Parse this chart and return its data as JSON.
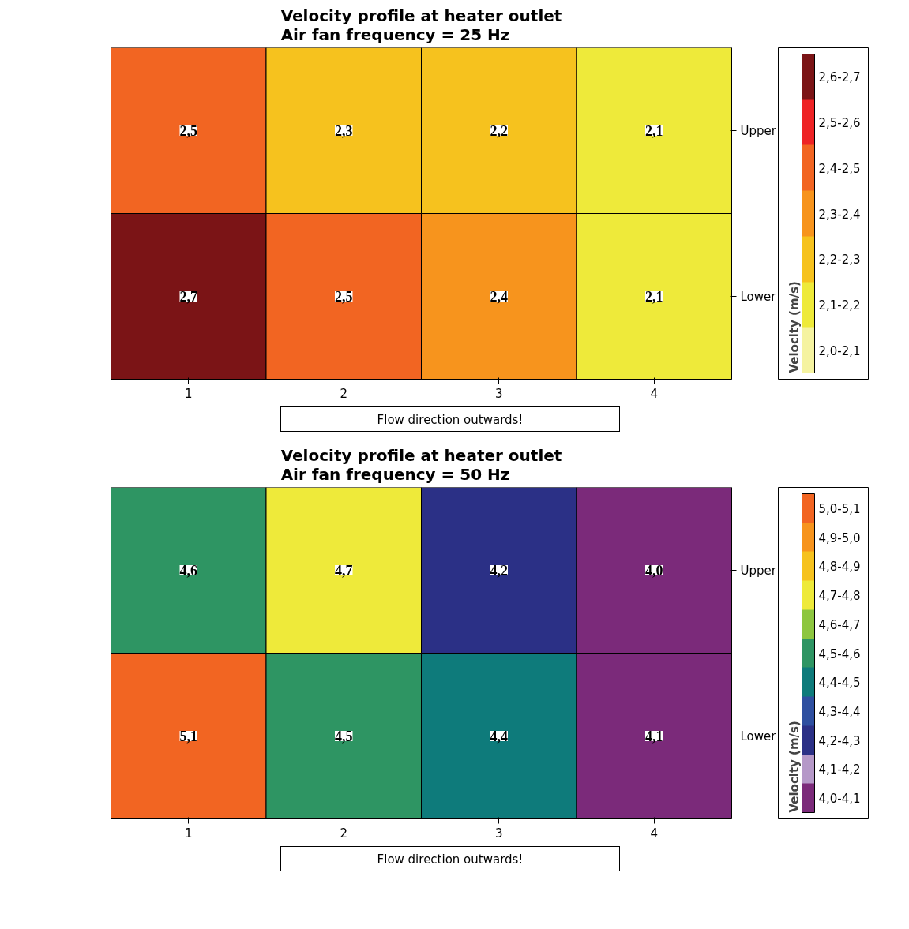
{
  "chart_data": [
    {
      "type": "heatmap",
      "title": "Velocity profile at heater outlet\nAir fan frequency = 25 Hz",
      "clabel": "Velocity (m/s)",
      "categories": [
        "1",
        "2",
        "3",
        "4"
      ],
      "y_categories": [
        "Upper",
        "Lower"
      ],
      "cells": [
        [
          2.5,
          2.3,
          2.2,
          2.1
        ],
        [
          2.7,
          2.5,
          2.4,
          2.1
        ]
      ],
      "cell_labels": [
        [
          "2,5",
          "2,3",
          "2,2",
          "2,1"
        ],
        [
          "2,7",
          "2,5",
          "2,4",
          "2,1"
        ]
      ],
      "clim": [
        2.0,
        2.7
      ],
      "cticks": [
        {
          "value": 2.05,
          "label": "2,0-2,1"
        },
        {
          "value": 2.15,
          "label": "2,1-2,2"
        },
        {
          "value": 2.25,
          "label": "2,2-2,3"
        },
        {
          "value": 2.35,
          "label": "2,3-2,4"
        },
        {
          "value": 2.45,
          "label": "2,4-2,5"
        },
        {
          "value": 2.55,
          "label": "2,5-2,6"
        },
        {
          "value": 2.65,
          "label": "2,6-2,7"
        }
      ],
      "colors": [
        "#f5f3a0",
        "#eeea3a",
        "#f6c21e",
        "#f7941d",
        "#f26522",
        "#ee2325",
        "#7b1416"
      ],
      "annotations": [
        "Flow direction outwards!"
      ]
    },
    {
      "type": "heatmap",
      "title": "Velocity profile at heater outlet\nAir fan frequency = 50 Hz",
      "clabel": "Velocity (m/s)",
      "categories": [
        "1",
        "2",
        "3",
        "4"
      ],
      "y_categories": [
        "Upper",
        "Lower"
      ],
      "cells": [
        [
          4.6,
          4.7,
          4.2,
          4.0
        ],
        [
          5.1,
          4.5,
          4.4,
          4.1
        ]
      ],
      "cell_labels": [
        [
          "4,6",
          "4,7",
          "4,2",
          "4,0"
        ],
        [
          "5,1",
          "4,5",
          "4,4",
          "4,1"
        ]
      ],
      "clim": [
        4.0,
        5.1
      ],
      "cticks": [
        {
          "value": 4.05,
          "label": "4,0-4,1"
        },
        {
          "value": 4.15,
          "label": "4,1-4,2"
        },
        {
          "value": 4.25,
          "label": "4,2-4,3"
        },
        {
          "value": 4.35,
          "label": "4,3-4,4"
        },
        {
          "value": 4.45,
          "label": "4,4-4,5"
        },
        {
          "value": 4.55,
          "label": "4,5-4,6"
        },
        {
          "value": 4.65,
          "label": "4,6-4,7"
        },
        {
          "value": 4.75,
          "label": "4,7-4,8"
        },
        {
          "value": 4.85,
          "label": "4,8-4,9"
        },
        {
          "value": 4.95,
          "label": "4,9-5,0"
        },
        {
          "value": 5.05,
          "label": "5,0-5,1"
        }
      ],
      "colors": [
        "#7b2a7a",
        "#b598c8",
        "#2b3086",
        "#2e4fa0",
        "#0e7b7b",
        "#2e9563",
        "#8dc63f",
        "#eeea3a",
        "#f6c21e",
        "#f7941d",
        "#f26522"
      ],
      "annotations": [
        "Flow direction outwards!"
      ]
    }
  ]
}
